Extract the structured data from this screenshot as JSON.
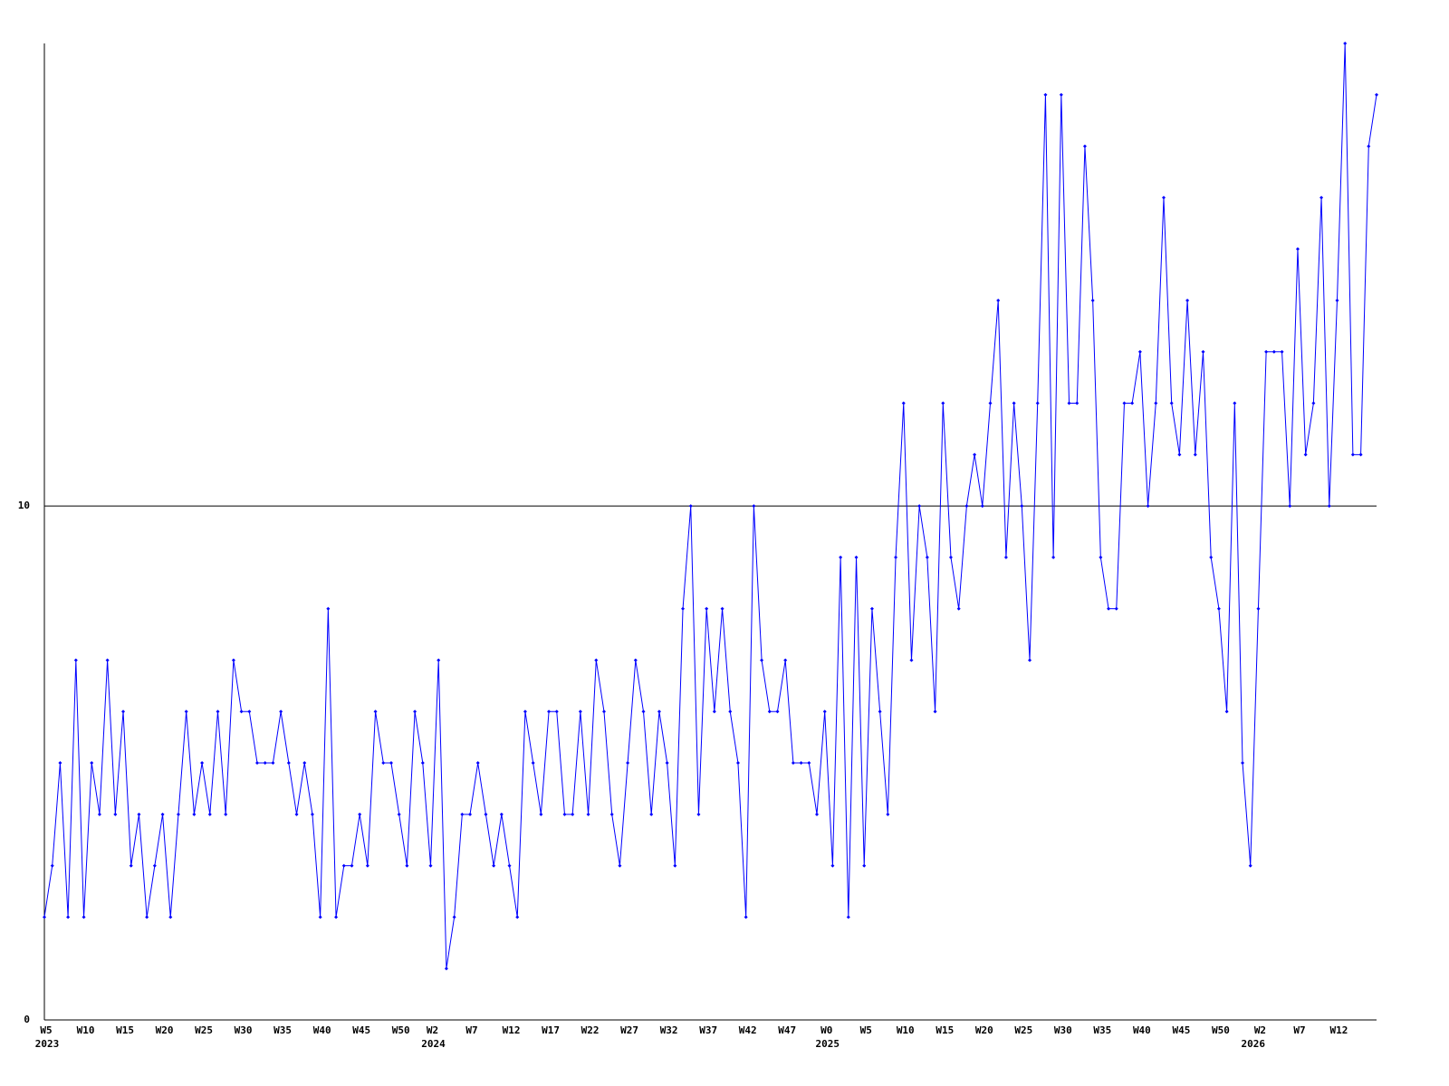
{
  "chart_data": {
    "type": "line",
    "categories": [
      "W5",
      null,
      null,
      null,
      null,
      "W10",
      null,
      null,
      null,
      null,
      "W15",
      null,
      null,
      null,
      null,
      "W20",
      null,
      null,
      null,
      null,
      "W25",
      null,
      null,
      null,
      null,
      "W30",
      null,
      null,
      null,
      null,
      "W35",
      null,
      null,
      null,
      null,
      "W40",
      null,
      null,
      null,
      null,
      "W45",
      null,
      null,
      null,
      null,
      "W50",
      null,
      null,
      null,
      "W2",
      null,
      null,
      null,
      null,
      "W7",
      null,
      null,
      null,
      null,
      "W12",
      null,
      null,
      null,
      null,
      "W17",
      null,
      null,
      null,
      null,
      "W22",
      null,
      null,
      null,
      null,
      "W27",
      null,
      null,
      null,
      null,
      "W32",
      null,
      null,
      null,
      null,
      "W37",
      null,
      null,
      null,
      null,
      "W42",
      null,
      null,
      null,
      null,
      "W47",
      null,
      null,
      null,
      null,
      "W0",
      null,
      null,
      null,
      null,
      "W5",
      null,
      null,
      null,
      null,
      "W10",
      null,
      null,
      null,
      null,
      "W15",
      null,
      null,
      null,
      null,
      "W20",
      null,
      null,
      null,
      null,
      "W25",
      null,
      null,
      null,
      null,
      "W30",
      null,
      null,
      null,
      null,
      "W35",
      null,
      null,
      null,
      null,
      "W40",
      null,
      null,
      null,
      null,
      "W45",
      null,
      null,
      null,
      null,
      "W50",
      null,
      null,
      null,
      null,
      "W2",
      null,
      null,
      null,
      null,
      "W7",
      null,
      null,
      null,
      null,
      "W12",
      null,
      null,
      null,
      null,
      null
    ],
    "years": [
      "2023",
      null,
      null,
      null,
      null,
      null,
      null,
      null,
      null,
      null,
      null,
      null,
      null,
      null,
      null,
      null,
      null,
      null,
      null,
      null,
      null,
      null,
      null,
      null,
      null,
      null,
      null,
      null,
      null,
      null,
      null,
      null,
      null,
      null,
      null,
      null,
      null,
      null,
      null,
      null,
      null,
      null,
      null,
      null,
      null,
      null,
      null,
      null,
      null,
      "2024",
      null,
      null,
      null,
      null,
      null,
      null,
      null,
      null,
      null,
      null,
      null,
      null,
      null,
      null,
      null,
      null,
      null,
      null,
      null,
      null,
      null,
      null,
      null,
      null,
      null,
      null,
      null,
      null,
      null,
      null,
      null,
      null,
      null,
      null,
      null,
      null,
      null,
      null,
      null,
      null,
      null,
      null,
      null,
      null,
      null,
      null,
      null,
      null,
      null,
      "2025",
      null,
      null,
      null,
      null,
      null,
      null,
      null,
      null,
      null,
      null,
      null,
      null,
      null,
      null,
      null,
      null,
      null,
      null,
      null,
      null,
      null,
      null,
      null,
      null,
      null,
      null,
      null,
      null,
      null,
      null,
      null,
      null,
      null,
      null,
      null,
      null,
      null,
      null,
      null,
      null,
      null,
      null,
      null,
      null,
      null,
      null,
      null,
      null,
      null,
      null,
      null,
      null,
      null,
      "2026",
      null,
      null,
      null,
      null,
      null,
      null,
      null,
      null,
      null,
      null,
      null,
      null,
      null,
      null,
      null
    ],
    "series": [
      {
        "color": "#0000ff",
        "values": [
          2,
          3,
          5,
          2,
          7,
          2,
          5,
          4,
          7,
          4,
          6,
          3,
          4,
          2,
          3,
          4,
          2,
          4,
          6,
          4,
          5,
          4,
          6,
          4,
          7,
          6,
          6,
          5,
          5,
          5,
          6,
          5,
          4,
          5,
          4,
          2,
          8,
          2,
          3,
          3,
          4,
          3,
          6,
          5,
          5,
          4,
          3,
          6,
          5,
          3,
          7,
          1,
          2,
          4,
          4,
          5,
          4,
          3,
          4,
          3,
          2,
          6,
          5,
          4,
          6,
          6,
          4,
          4,
          6,
          4,
          7,
          6,
          4,
          3,
          5,
          7,
          6,
          4,
          6,
          5,
          3,
          8,
          10,
          4,
          8,
          6,
          8,
          6,
          5,
          2,
          10,
          7,
          6,
          6,
          7,
          5,
          5,
          5,
          4,
          6,
          3,
          9,
          2,
          9,
          3,
          8,
          6,
          4,
          9,
          12,
          7,
          10,
          9,
          6,
          12,
          9,
          8,
          10,
          11,
          10,
          12,
          14,
          9,
          12,
          10,
          7,
          12,
          18,
          9,
          18,
          12,
          12,
          17,
          14,
          9,
          8,
          8,
          12,
          12,
          13,
          10,
          12,
          16,
          12,
          11,
          14,
          11,
          13,
          9,
          8,
          6,
          12,
          5,
          3,
          8,
          13,
          13,
          13,
          10,
          15,
          11,
          12,
          16,
          10,
          14,
          19,
          11,
          11,
          17,
          18
        ]
      }
    ],
    "ylim": [
      0,
      19
    ],
    "yticks": [
      0,
      10
    ],
    "grid": true
  }
}
